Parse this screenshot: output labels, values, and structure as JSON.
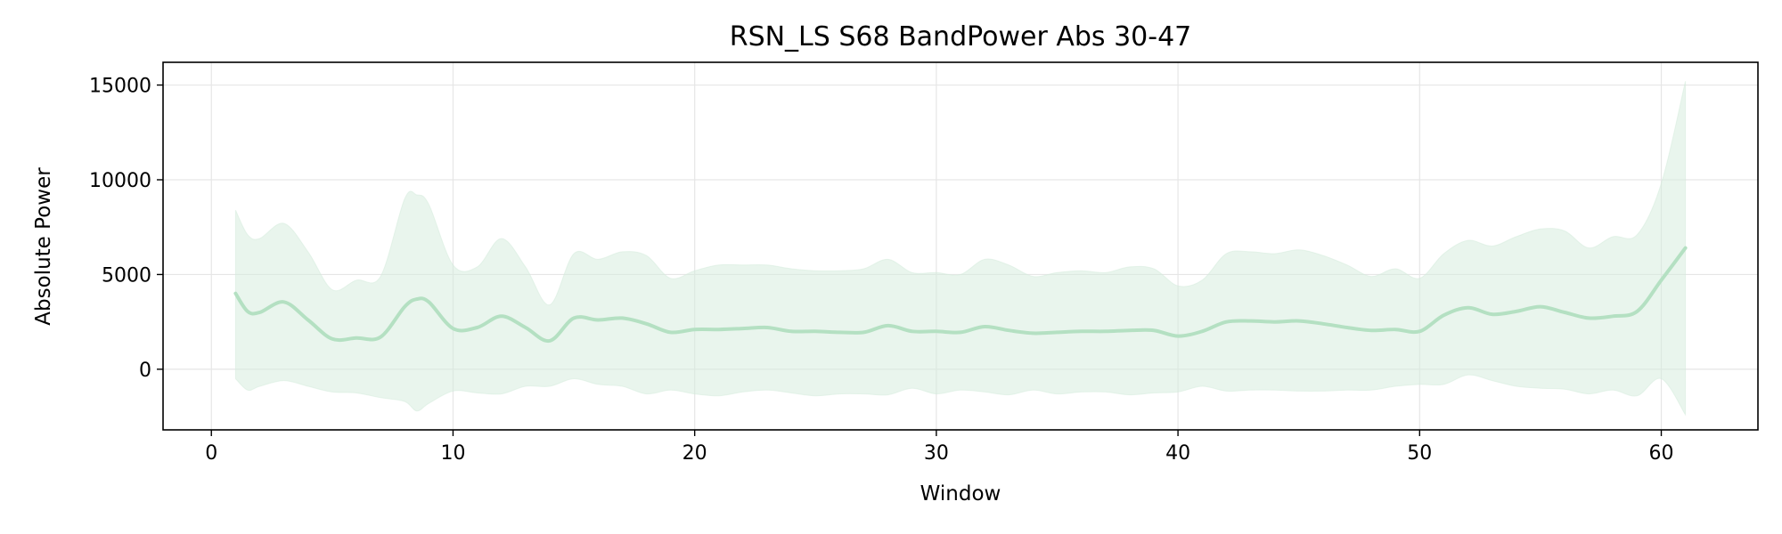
{
  "chart_data": {
    "type": "line",
    "title": "RSN_LS S68 BandPower Abs 30-47",
    "xlabel": "Window",
    "ylabel": "Absolute Power",
    "xlim": [
      -2,
      64
    ],
    "ylim": [
      -3200,
      16200
    ],
    "xticks": [
      0,
      10,
      20,
      30,
      40,
      50,
      60
    ],
    "yticks": [
      0,
      5000,
      10000,
      15000
    ],
    "grid": true,
    "colors": {
      "line": "#b4e0c2",
      "band": "#d4ecdc"
    },
    "series": [
      {
        "x": [
          1,
          1.5,
          2,
          3,
          4,
          5,
          6,
          7,
          8,
          8.5,
          9,
          10,
          11,
          12,
          13,
          14,
          15,
          16,
          17,
          18,
          19,
          20,
          21,
          22,
          23,
          24,
          25,
          26,
          27,
          28,
          29,
          30,
          31,
          32,
          33,
          34,
          35,
          36,
          37,
          38,
          39,
          40,
          41,
          42,
          43,
          44,
          45,
          46,
          47,
          48,
          49,
          50,
          51,
          52,
          53,
          54,
          55,
          56,
          57,
          58,
          59,
          60,
          61
        ],
        "values": [
          4000,
          3050,
          3000,
          3550,
          2600,
          1600,
          1650,
          1700,
          3300,
          3700,
          3550,
          2150,
          2200,
          2800,
          2200,
          1500,
          2700,
          2600,
          2700,
          2400,
          1950,
          2100,
          2100,
          2150,
          2200,
          2000,
          2000,
          1950,
          1950,
          2300,
          2000,
          2000,
          1950,
          2250,
          2050,
          1900,
          1950,
          2000,
          2000,
          2050,
          2050,
          1750,
          2000,
          2500,
          2550,
          2500,
          2550,
          2400,
          2200,
          2050,
          2100,
          2000,
          2850,
          3250,
          2900,
          3050,
          3300,
          3000,
          2700,
          2800,
          3050,
          4700,
          6400
        ],
        "upper": [
          8400,
          7100,
          6900,
          7700,
          6200,
          4200,
          4700,
          4900,
          9000,
          9200,
          8700,
          5500,
          5400,
          6900,
          5400,
          3400,
          6100,
          5800,
          6200,
          6000,
          4800,
          5200,
          5500,
          5500,
          5500,
          5300,
          5200,
          5200,
          5300,
          5800,
          5100,
          5100,
          5000,
          5800,
          5500,
          4900,
          5100,
          5200,
          5100,
          5400,
          5300,
          4400,
          4700,
          6100,
          6200,
          6100,
          6300,
          6000,
          5500,
          4900,
          5300,
          4800,
          6100,
          6800,
          6500,
          7000,
          7400,
          7300,
          6400,
          7000,
          7100,
          9800,
          15200
        ],
        "lower": [
          -500,
          -1100,
          -900,
          -600,
          -900,
          -1200,
          -1250,
          -1500,
          -1700,
          -2200,
          -1800,
          -1150,
          -1250,
          -1300,
          -900,
          -900,
          -500,
          -800,
          -900,
          -1300,
          -1100,
          -1300,
          -1400,
          -1200,
          -1100,
          -1250,
          -1400,
          -1300,
          -1300,
          -1350,
          -1000,
          -1300,
          -1100,
          -1200,
          -1350,
          -1100,
          -1300,
          -1200,
          -1200,
          -1350,
          -1250,
          -1200,
          -900,
          -1150,
          -1100,
          -1100,
          -1150,
          -1150,
          -1100,
          -1100,
          -900,
          -800,
          -800,
          -300,
          -600,
          -900,
          -1000,
          -1050,
          -1300,
          -1100,
          -1400,
          -500,
          -2400
        ]
      }
    ]
  }
}
